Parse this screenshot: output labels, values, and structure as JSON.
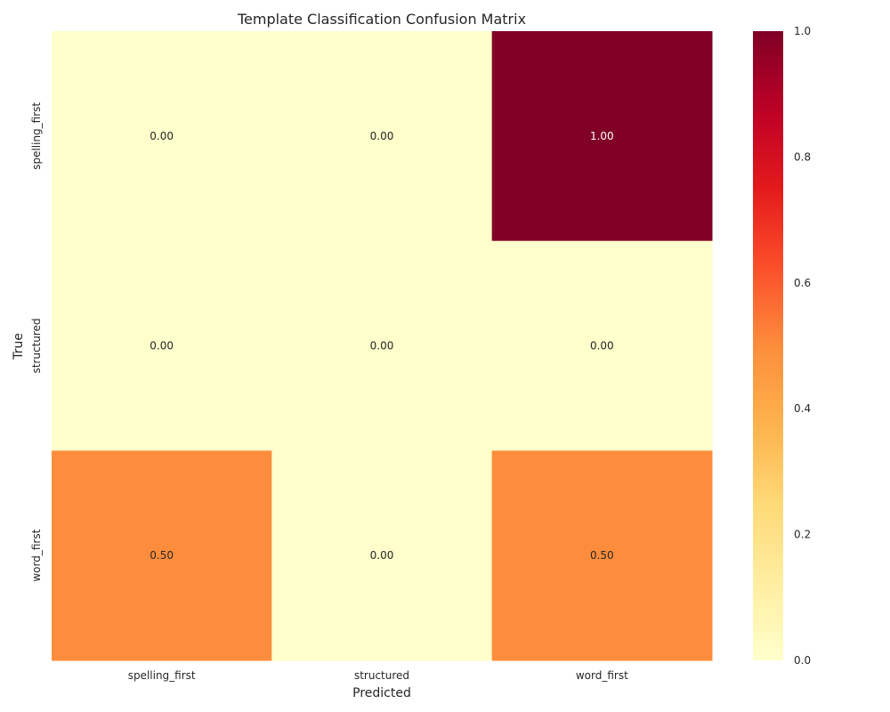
{
  "chart_data": {
    "type": "heatmap",
    "title": "Template Classification Confusion Matrix",
    "xlabel": "Predicted",
    "ylabel": "True",
    "x_categories": [
      "spelling_first",
      "structured",
      "word_first"
    ],
    "y_categories": [
      "spelling_first",
      "structured",
      "word_first"
    ],
    "values": [
      [
        0.0,
        0.0,
        1.0
      ],
      [
        0.0,
        0.0,
        0.0
      ],
      [
        0.5,
        0.0,
        0.5
      ]
    ],
    "value_labels": [
      [
        "0.00",
        "0.00",
        "1.00"
      ],
      [
        "0.00",
        "0.00",
        "0.00"
      ],
      [
        "0.50",
        "0.00",
        "0.50"
      ]
    ],
    "colormap": "YlOrRd",
    "vmin": 0.0,
    "vmax": 1.0,
    "colorbar_ticks": [
      "0.0",
      "0.2",
      "0.4",
      "0.6",
      "0.8",
      "1.0"
    ],
    "grid": false
  }
}
